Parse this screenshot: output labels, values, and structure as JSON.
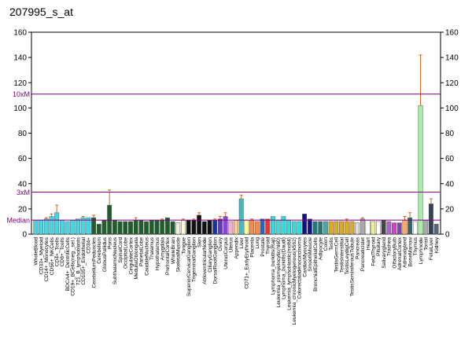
{
  "chart_data": {
    "type": "bar",
    "title": "207995_s_at",
    "categories": [
      "WholeBlood",
      "CD33+_Myeloid",
      "CD14+_Monocytes",
      "CD56+_NKCells",
      "CD4+_Tcells",
      "CD8+_Tcells",
      "BDCA4+_DentriticCells",
      "CD19+_BCells(neg._sel.)",
      "721_B_lymphoblasts",
      "CD105+_Endothelial",
      "CD34+",
      "CerebellumPeduncles",
      "Cerebellum",
      "GlobusPallidus",
      "Pons",
      "SubthalamicNucleus",
      "SpinalCord",
      "OccipitalLobe",
      "CingulateCortex",
      "MedullaOblongata",
      "ParietalLobe",
      "CaudateNucleus",
      "Thalamus",
      "Hypothalamus",
      "Amygdala",
      "PrefrontalCortex",
      "WholeBrain",
      "SkeletalMuscle",
      "Tongue",
      "SuperiorCervicalGanglion",
      "TrigeminalGanglion",
      "Skin",
      "AtrioventricularNode",
      "CiliaryGanglion",
      "DorsalRootGanglion",
      "Ovary",
      "UterusCorpus",
      "Uterus",
      "Appendix",
      "Liver",
      "CD71+_EarlyErythroid",
      "Placenta",
      "Lung",
      "Prostate",
      "Thyroid",
      "Lymphoma_burkitts(Raji)",
      "Leukemia_promyelocytic(hl60)",
      "Lymphoma_burkitts(Daudi)",
      "Leukemia_lymphoblastic(molt4)",
      "Leukemia_chronicMyelogenous(k562)",
      "Colorectaladenocarcinoma",
      "CardiacMyocytes",
      "SmoothMuscle",
      "BronchialEpithelialCells",
      "Adipocyte",
      "Colon",
      "Testis",
      "TestisGermCell",
      "TestisInterstitial",
      "TestisLeydigCell",
      "TestisSeminiferousTubule",
      "Pancreas",
      "PancreaticIslet",
      "Heart",
      "FetalThyroid",
      "Pituitary",
      "Salivarygland",
      "Trachea",
      "OlfactoryBulb",
      "AdrenalCortex",
      "Adrenalgland",
      "BoneMarrow",
      "Thymus",
      "Lymphnode",
      "Tonsil",
      "FetalLiver",
      "Kidney"
    ],
    "values": [
      11,
      11,
      12,
      14,
      17,
      11,
      10,
      11,
      12,
      13,
      13,
      13,
      8,
      11,
      23,
      11,
      10,
      10,
      10,
      11,
      11,
      10,
      11,
      11,
      11,
      13,
      10,
      9,
      11,
      11,
      11,
      15,
      10,
      11,
      11,
      12,
      14,
      10,
      11,
      28,
      11,
      11,
      10,
      12,
      12,
      14,
      11,
      14,
      11,
      10,
      10,
      16,
      12,
      10,
      10,
      10,
      10,
      10,
      10,
      10,
      10,
      9,
      12,
      11,
      10,
      10,
      11,
      10,
      9,
      9,
      11,
      13,
      10,
      102,
      11,
      24,
      8
    ],
    "errors": [
      null,
      null,
      1,
      2,
      6,
      null,
      null,
      null,
      null,
      1,
      null,
      2,
      null,
      null,
      12,
      null,
      null,
      null,
      null,
      2,
      null,
      null,
      null,
      null,
      1,
      null,
      null,
      null,
      1,
      null,
      1,
      2,
      null,
      null,
      1,
      2,
      3,
      null,
      null,
      3,
      null,
      1,
      null,
      null,
      null,
      null,
      null,
      null,
      null,
      null,
      null,
      null,
      null,
      null,
      null,
      null,
      null,
      null,
      null,
      2,
      null,
      null,
      1,
      null,
      null,
      null,
      null,
      null,
      null,
      null,
      3,
      4,
      null,
      40,
      null,
      4,
      null
    ],
    "colors": [
      "#40d8e8",
      "#40d8e8",
      "#40d8e8",
      "#40d8e8",
      "#40d8e8",
      "#40d8e8",
      "#40d8e8",
      "#40d8e8",
      "#40d8e8",
      "#40d8e8",
      "#40d8e8",
      "#1e5e2a",
      "#1e5e2a",
      "#1e5e2a",
      "#1e5e2a",
      "#1e5e2a",
      "#1e5e2a",
      "#1e5e2a",
      "#1e5e2a",
      "#1e5e2a",
      "#1e5e2a",
      "#1e5e2a",
      "#1e5e2a",
      "#1e5e2a",
      "#1e5e2a",
      "#1e5e2a",
      "#1e5e2a",
      "#eeeedd",
      "#fff8e0",
      "#111111",
      "#111111",
      "#111111",
      "#111111",
      "#111111",
      "#1133aa",
      "#6633cc",
      "#8844dd",
      "#ffaacc",
      "#ffcc88",
      "#44bbbb",
      "#ffff88",
      "#ff8844",
      "#ff8844",
      "#2266cc",
      "#ee3333",
      "#33dddd",
      "#33dddd",
      "#33dddd",
      "#33dddd",
      "#33dddd",
      "#33dddd",
      "#111188",
      "#111188",
      "#227777",
      "#227777",
      "#44aaaa",
      "#ddaa22",
      "#ddaa22",
      "#ddaa22",
      "#ddaa22",
      "#ddaa22",
      "#dddddd",
      "#aaaaaa",
      "#ffffff",
      "#eeee99",
      "#ffffff",
      "#444444",
      "#aa66cc",
      "#cc44cc",
      "#8844aa",
      "#ffaa66",
      "#336666",
      "#ffffff",
      "#aaeeaa",
      "#aaaaaa",
      "#334455",
      "#556677"
    ],
    "error_color": "#cc6622",
    "reference_lines": [
      {
        "label": "10xM",
        "value": 111
      },
      {
        "label": "3xM",
        "value": 33.3
      },
      {
        "label": "Median",
        "value": 11.1
      }
    ],
    "reference_color": "#800080",
    "ylim": [
      0,
      160
    ],
    "yticks": [
      0,
      20,
      40,
      60,
      80,
      100,
      120,
      140,
      160
    ],
    "y2lim": [
      0,
      160
    ],
    "y2ticks": [
      0,
      20,
      40,
      60,
      80,
      100,
      120,
      140,
      160
    ]
  }
}
